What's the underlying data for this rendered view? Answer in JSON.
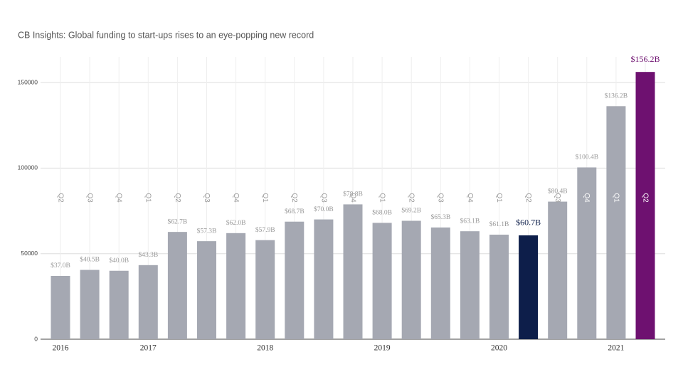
{
  "chart_data": {
    "type": "bar",
    "title": "CB Insights: Global funding to start-ups rises to an eye-popping new record",
    "categories": [
      "Q2",
      "Q3",
      "Q4",
      "Q1",
      "Q2",
      "Q3",
      "Q4",
      "Q1",
      "Q2",
      "Q3",
      "Q4",
      "Q1",
      "Q2",
      "Q3",
      "Q4",
      "Q1",
      "Q2",
      "Q3",
      "Q4",
      "Q1",
      "Q2"
    ],
    "values": [
      37000,
      40500,
      40000,
      43300,
      62700,
      57300,
      62000,
      57900,
      68700,
      70000,
      78800,
      68000,
      69200,
      65300,
      63100,
      61100,
      60700,
      80400,
      100400,
      136200,
      156200
    ],
    "value_labels": [
      "$37.0B",
      "$40.5B",
      "$40.0B",
      "$43.3B",
      "$62.7B",
      "$57.3B",
      "$62.0B",
      "$57.9B",
      "$68.7B",
      "$70.0B",
      "$78.8B",
      "$68.0B",
      "$69.2B",
      "$65.3B",
      "$63.1B",
      "$61.1B",
      "$60.7B",
      "$80.4B",
      "$100.4B",
      "$136.2B",
      "$156.2B"
    ],
    "colors": [
      "#a5a8b2",
      "#a5a8b2",
      "#a5a8b2",
      "#a5a8b2",
      "#a5a8b2",
      "#a5a8b2",
      "#a5a8b2",
      "#a5a8b2",
      "#a5a8b2",
      "#a5a8b2",
      "#a5a8b2",
      "#a5a8b2",
      "#a5a8b2",
      "#a5a8b2",
      "#a5a8b2",
      "#a5a8b2",
      "#0d1e4a",
      "#a5a8b2",
      "#a5a8b2",
      "#a5a8b2",
      "#6e1170"
    ],
    "xticks": [
      {
        "value": 0,
        "label": "2016"
      },
      {
        "value": 3,
        "label": "2017"
      },
      {
        "value": 7,
        "label": "2018"
      },
      {
        "value": 11,
        "label": "2019"
      },
      {
        "value": 15,
        "label": "2020"
      },
      {
        "value": 19,
        "label": "2021"
      }
    ],
    "ylim": [
      0,
      165000
    ],
    "yticks": [
      0,
      50000,
      100000,
      150000
    ],
    "grid": true
  }
}
